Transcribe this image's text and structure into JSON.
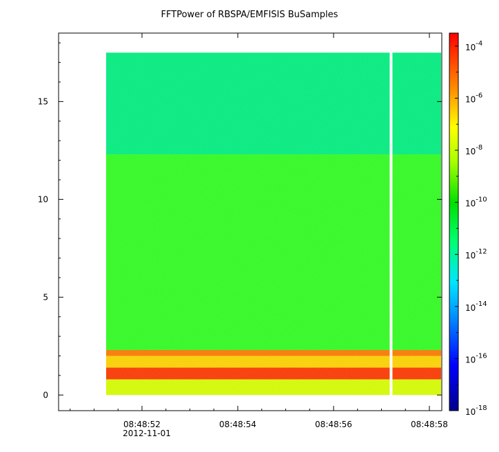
{
  "chart_data": {
    "type": "heatmap",
    "title": "FFTPower of RBSPA/EMFISIS  BuSamples",
    "xlabel": "",
    "ylabel": "",
    "x_tick_labels": [
      "08:48:52",
      "08:48:54",
      "08:48:56",
      "08:48:58"
    ],
    "x_date_label": "2012-11-01",
    "y_ticks": [
      0,
      5,
      10,
      15
    ],
    "y_tick_labels": [
      "0",
      "5",
      "10",
      "15"
    ],
    "ylim": [
      -0.8,
      18.5
    ],
    "data_y_range": [
      0,
      17.5
    ],
    "data_gap_time": "08:48:57.2",
    "colorbar": {
      "scale": "log",
      "range": [
        "1e-18",
        "3e-4"
      ],
      "tick_bases": [
        "10",
        "10",
        "10",
        "10",
        "10",
        "10",
        "10",
        "10"
      ],
      "tick_exponents": [
        "-4",
        "-6",
        "-8",
        "-10",
        "-12",
        "-14",
        "-16",
        "-18"
      ]
    },
    "bands": [
      {
        "y_from": 0,
        "y_to": 0.8,
        "level": "~1e-9"
      },
      {
        "y_from": 0.8,
        "y_to": 1.4,
        "level": "~1e-6"
      },
      {
        "y_from": 1.4,
        "y_to": 2.0,
        "level": "~1e-8"
      },
      {
        "y_from": 2.0,
        "y_to": 2.3,
        "level": "~1e-7"
      },
      {
        "y_from": 2.3,
        "y_to": 12.3,
        "level": "~1e-10"
      },
      {
        "y_from": 12.3,
        "y_to": 17.5,
        "level": "~1e-11"
      }
    ]
  }
}
